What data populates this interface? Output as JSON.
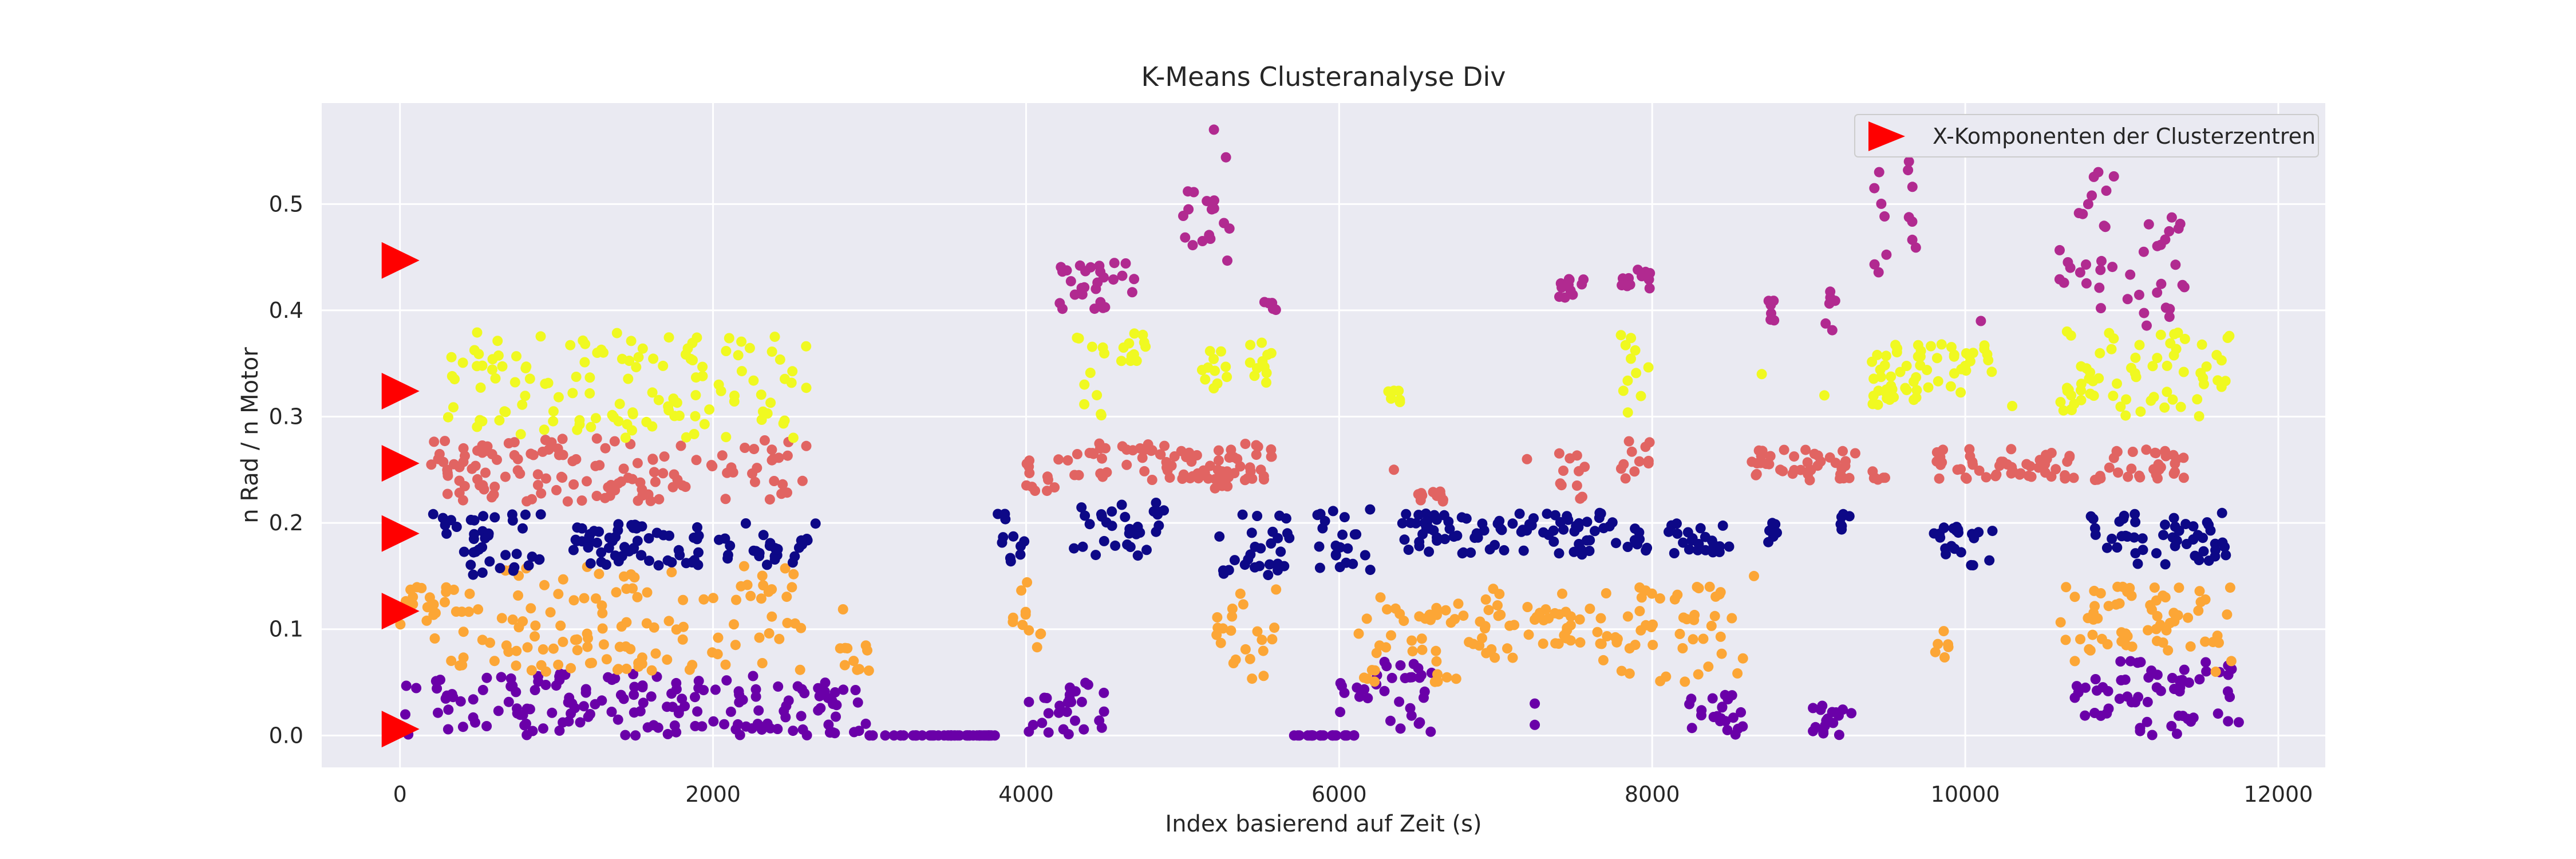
{
  "chart_data": {
    "type": "scatter",
    "title": "K-Means Clusteranalyse Div",
    "xlabel": "Index basierend auf Zeit (s)",
    "ylabel": "n Rad / n Motor",
    "xlim": [
      -500,
      12300
    ],
    "ylim": [
      -0.03,
      0.595
    ],
    "xticks": [
      0,
      2000,
      4000,
      6000,
      8000,
      10000,
      12000
    ],
    "yticks": [
      0.0,
      0.1,
      0.2,
      0.3,
      0.4,
      0.5
    ],
    "grid": true,
    "background": "#eaeaf2",
    "legend": {
      "placement": "top-right",
      "label": "X-Komponenten der Clusterzentren",
      "marker_color": "#ff0000"
    },
    "centers": {
      "x": [
        0,
        0,
        0,
        0,
        0,
        0
      ],
      "y": [
        0.006,
        0.117,
        0.19,
        0.256,
        0.324,
        0.447
      ],
      "color": "#ff0000"
    },
    "clusters": [
      {
        "color": "#6a00a8",
        "segments": [
          [
            0,
            2600,
            0.0,
            0.06
          ],
          [
            2600,
            3000,
            0.0,
            0.05
          ],
          [
            3000,
            3800,
            0.0,
            0.0
          ],
          [
            4000,
            4500,
            0.0,
            0.05
          ],
          [
            5700,
            6100,
            0.0,
            0.0
          ],
          [
            6000,
            6600,
            0.0,
            0.07
          ],
          [
            8200,
            8600,
            0.0,
            0.04
          ],
          [
            9000,
            9300,
            0.0,
            0.03
          ],
          [
            10700,
            11800,
            0.0,
            0.07
          ]
        ],
        "extras": [
          [
            3100,
            0.0
          ],
          [
            3300,
            0.0
          ],
          [
            3500,
            0.0
          ],
          [
            3700,
            0.0
          ],
          [
            3800,
            0.0
          ],
          [
            5800,
            0.0
          ],
          [
            5900,
            0.0
          ],
          [
            6050,
            0.0
          ],
          [
            7250,
            0.03
          ],
          [
            7250,
            0.01
          ]
        ]
      },
      {
        "color": "#fca636",
        "segments": [
          [
            0,
            300,
            0.09,
            0.14
          ],
          [
            300,
            2600,
            0.06,
            0.16
          ],
          [
            2800,
            3000,
            0.06,
            0.14
          ],
          [
            3900,
            4100,
            0.08,
            0.15
          ],
          [
            5200,
            5600,
            0.05,
            0.14
          ],
          [
            6100,
            6800,
            0.05,
            0.13
          ],
          [
            6800,
            7800,
            0.07,
            0.14
          ],
          [
            7800,
            8600,
            0.05,
            0.14
          ],
          [
            9800,
            9900,
            0.07,
            0.1
          ],
          [
            10600,
            11700,
            0.08,
            0.14
          ]
        ],
        "extras": [
          [
            10700,
            0.07
          ],
          [
            10800,
            0.08
          ],
          [
            11600,
            0.06
          ],
          [
            11700,
            0.07
          ],
          [
            8650,
            0.15
          ]
        ]
      },
      {
        "color": "#0d0887",
        "segments": [
          [
            200,
            900,
            0.15,
            0.21
          ],
          [
            1100,
            2700,
            0.16,
            0.2
          ],
          [
            3800,
            4000,
            0.16,
            0.21
          ],
          [
            4300,
            4900,
            0.16,
            0.22
          ],
          [
            5200,
            5700,
            0.15,
            0.21
          ],
          [
            5800,
            6200,
            0.15,
            0.22
          ],
          [
            6400,
            6600,
            0.17,
            0.21
          ],
          [
            6500,
            8000,
            0.17,
            0.21
          ],
          [
            8100,
            8500,
            0.17,
            0.2
          ],
          [
            8700,
            8800,
            0.18,
            0.2
          ],
          [
            9200,
            9300,
            0.18,
            0.21
          ],
          [
            9800,
            10200,
            0.16,
            0.2
          ],
          [
            10800,
            11700,
            0.16,
            0.21
          ]
        ]
      },
      {
        "color": "#e16462",
        "segments": [
          [
            200,
            2600,
            0.22,
            0.28
          ],
          [
            4000,
            4200,
            0.23,
            0.26
          ],
          [
            4200,
            5600,
            0.24,
            0.275
          ],
          [
            5200,
            5300,
            0.23,
            0.25
          ],
          [
            6500,
            6700,
            0.22,
            0.23
          ],
          [
            7400,
            7600,
            0.22,
            0.27
          ],
          [
            7800,
            8000,
            0.24,
            0.28
          ],
          [
            8600,
            9300,
            0.24,
            0.27
          ],
          [
            9400,
            9500,
            0.24,
            0.25
          ],
          [
            9800,
            10700,
            0.24,
            0.27
          ],
          [
            10800,
            11400,
            0.24,
            0.27
          ]
        ],
        "extras": [
          [
            6350,
            0.25
          ],
          [
            7200,
            0.26
          ],
          [
            5500,
            0.25
          ]
        ]
      },
      {
        "color": "#f0f921",
        "segments": [
          [
            300,
            2600,
            0.28,
            0.38
          ],
          [
            4300,
            4500,
            0.3,
            0.38
          ],
          [
            4600,
            4800,
            0.35,
            0.38
          ],
          [
            5100,
            5300,
            0.32,
            0.37
          ],
          [
            5400,
            5600,
            0.33,
            0.37
          ],
          [
            6300,
            6400,
            0.31,
            0.33
          ],
          [
            7800,
            8000,
            0.3,
            0.38
          ],
          [
            9400,
            9700,
            0.31,
            0.33
          ],
          [
            9400,
            10200,
            0.32,
            0.37
          ],
          [
            10600,
            10700,
            0.3,
            0.33
          ],
          [
            10600,
            11700,
            0.3,
            0.38
          ]
        ],
        "extras": [
          [
            8700,
            0.34
          ],
          [
            9100,
            0.32
          ],
          [
            10050,
            0.36
          ],
          [
            10300,
            0.31
          ],
          [
            10650,
            0.38
          ]
        ]
      },
      {
        "color": "#b12a90",
        "segments": [
          [
            4200,
            4700,
            0.4,
            0.45
          ],
          [
            5000,
            5200,
            0.45,
            0.52
          ],
          [
            5200,
            5300,
            0.42,
            0.57
          ],
          [
            5500,
            5600,
            0.4,
            0.41
          ],
          [
            7400,
            7600,
            0.41,
            0.43
          ],
          [
            7800,
            8000,
            0.42,
            0.44
          ],
          [
            8700,
            8800,
            0.39,
            0.41
          ],
          [
            9100,
            9200,
            0.38,
            0.42
          ],
          [
            9400,
            9500,
            0.4,
            0.53
          ],
          [
            9600,
            9700,
            0.4,
            0.54
          ],
          [
            10600,
            10800,
            0.39,
            0.5
          ],
          [
            10800,
            11000,
            0.39,
            0.53
          ],
          [
            11000,
            11400,
            0.38,
            0.49
          ]
        ],
        "extras": [
          [
            10100,
            0.39
          ],
          [
            5200,
            0.57
          ],
          [
            10850,
            0.53
          ],
          [
            9640,
            0.54
          ],
          [
            9450,
            0.53
          ]
        ]
      }
    ]
  }
}
